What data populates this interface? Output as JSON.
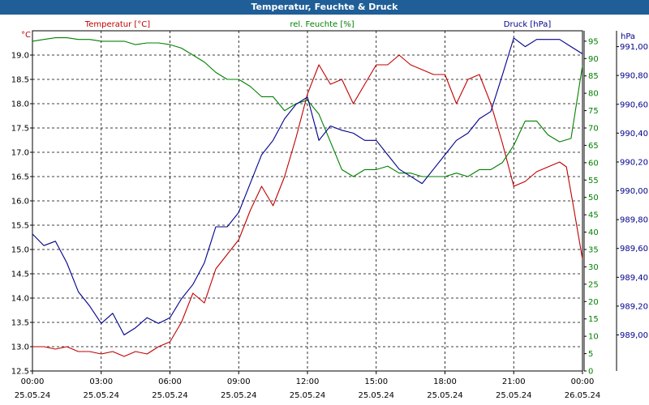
{
  "window_title": "Temperatur, Feuchte & Druck",
  "chart_data": {
    "type": "line",
    "title": "Temperatur, Feuchte & Druck",
    "grid": true,
    "x_ticks": [
      {
        "time": "00:00",
        "date": "25.05.24"
      },
      {
        "time": "03:00",
        "date": "25.05.24"
      },
      {
        "time": "06:00",
        "date": "25.05.24"
      },
      {
        "time": "09:00",
        "date": "25.05.24"
      },
      {
        "time": "12:00",
        "date": "25.05.24"
      },
      {
        "time": "15:00",
        "date": "25.05.24"
      },
      {
        "time": "18:00",
        "date": "25.05.24"
      },
      {
        "time": "21:00",
        "date": "25.05.24"
      },
      {
        "time": "00:00",
        "date": "26.05.24"
      }
    ],
    "x_range_hours": [
      0,
      24
    ],
    "axes": {
      "temperature": {
        "unit": "°C",
        "range": [
          12.5,
          19.5
        ],
        "ticks": [
          "12.5",
          "13.0",
          "13.5",
          "14.0",
          "14.5",
          "15.0",
          "15.5",
          "16.0",
          "16.5",
          "17.0",
          "17.5",
          "18.0",
          "18.5",
          "19.0"
        ],
        "color": "#c00000"
      },
      "humidity": {
        "unit": "%",
        "range": [
          0,
          98
        ],
        "ticks": [
          "0",
          "5",
          "10",
          "15",
          "20",
          "25",
          "30",
          "35",
          "40",
          "45",
          "50",
          "55",
          "60",
          "65",
          "70",
          "75",
          "80",
          "85",
          "90",
          "95"
        ],
        "color": "#008000"
      },
      "pressure": {
        "unit": "hPa",
        "range": [
          988.75,
          991.11
        ],
        "ticks": [
          "989,00",
          "989,20",
          "989,40",
          "989,60",
          "989,80",
          "990,00",
          "990,20",
          "990,40",
          "990,60",
          "990,80",
          "991,00"
        ],
        "color": "#00008b"
      }
    },
    "series": [
      {
        "name": "Temperatur [°C]",
        "axis": "temperature",
        "color": "#c00000",
        "x": [
          0,
          0.5,
          1,
          1.5,
          2,
          2.5,
          3,
          3.5,
          4,
          4.5,
          5,
          5.5,
          6,
          6.5,
          7,
          7.5,
          8,
          8.5,
          9,
          9.5,
          10,
          10.5,
          11,
          11.5,
          12,
          12.5,
          13,
          13.5,
          14,
          14.5,
          15,
          15.5,
          16,
          16.5,
          17,
          17.5,
          18,
          18.5,
          19,
          19.5,
          20,
          20.5,
          21,
          21.5,
          22,
          22.5,
          23,
          23.3,
          23.6,
          24
        ],
        "values": [
          13.0,
          13.0,
          12.95,
          13.0,
          12.9,
          12.9,
          12.85,
          12.9,
          12.8,
          12.9,
          12.85,
          13.0,
          13.1,
          13.5,
          14.1,
          13.9,
          14.6,
          14.9,
          15.2,
          15.8,
          16.3,
          15.9,
          16.5,
          17.3,
          18.2,
          18.8,
          18.4,
          18.5,
          18.0,
          18.4,
          18.8,
          18.8,
          19.0,
          18.8,
          18.7,
          18.6,
          18.6,
          18.0,
          18.5,
          18.6,
          18.0,
          17.2,
          16.3,
          16.4,
          16.6,
          16.7,
          16.8,
          16.7,
          15.9,
          14.8
        ]
      },
      {
        "name": "rel. Feuchte [%]",
        "axis": "humidity",
        "color": "#008000",
        "x": [
          0,
          0.5,
          1,
          1.5,
          2,
          2.5,
          3,
          3.5,
          4,
          4.5,
          5,
          5.5,
          6,
          6.5,
          7,
          7.5,
          8,
          8.5,
          9,
          9.5,
          10,
          10.5,
          11,
          11.5,
          12,
          12.5,
          13,
          13.5,
          14,
          14.5,
          15,
          15.5,
          16,
          16.5,
          17,
          17.5,
          18,
          18.5,
          19,
          19.5,
          20,
          20.5,
          21,
          21.5,
          22,
          22.5,
          23,
          23.5,
          24
        ],
        "values": [
          95,
          95.5,
          96,
          96,
          95.5,
          95.5,
          95,
          95,
          95,
          94,
          94.5,
          94.5,
          94,
          93,
          91,
          89,
          86,
          84,
          84,
          82,
          79,
          79,
          75,
          77,
          78,
          74,
          66,
          58,
          56,
          58,
          58,
          59,
          57,
          57,
          56,
          56,
          56,
          57,
          56,
          58,
          58,
          60,
          65,
          72,
          72,
          68,
          66,
          67,
          88
        ]
      },
      {
        "name": "Druck [hPa]",
        "axis": "pressure",
        "color": "#00008b",
        "x": [
          0,
          0.5,
          1,
          1.5,
          2,
          2.5,
          3,
          3.5,
          4,
          4.5,
          5,
          5.5,
          6,
          6.5,
          7,
          7.5,
          8,
          8.5,
          9,
          9.5,
          10,
          10.5,
          11,
          11.5,
          12,
          12.5,
          13,
          13.5,
          14,
          14.5,
          15,
          15.5,
          16,
          16.5,
          17,
          17.5,
          18,
          18.5,
          19,
          19.5,
          20,
          20.5,
          21,
          21.5,
          22,
          22.5,
          23,
          23.5,
          24
        ],
        "values": [
          989.7,
          989.62,
          989.65,
          989.5,
          989.3,
          989.2,
          989.08,
          989.15,
          989.0,
          989.05,
          989.12,
          989.08,
          989.12,
          989.25,
          989.35,
          989.5,
          989.75,
          989.75,
          989.85,
          990.05,
          990.25,
          990.35,
          990.5,
          990.6,
          990.65,
          990.35,
          990.45,
          990.42,
          990.4,
          990.35,
          990.35,
          990.25,
          990.15,
          990.1,
          990.05,
          990.15,
          990.25,
          990.35,
          990.4,
          990.5,
          990.55,
          990.8,
          991.06,
          991.0,
          991.05,
          991.05,
          991.05,
          991.0,
          990.95
        ]
      }
    ]
  }
}
